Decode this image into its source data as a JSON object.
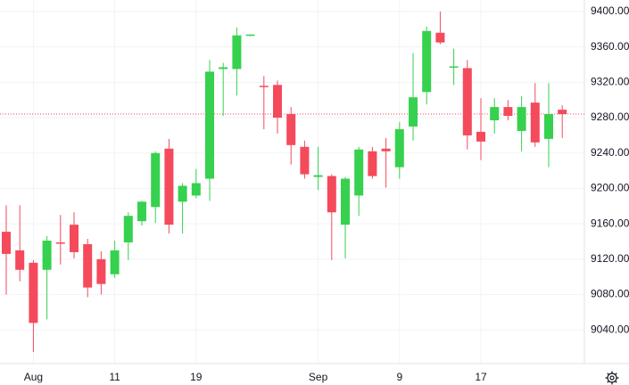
{
  "chart_data": {
    "type": "candlestick",
    "categories": [
      null,
      null,
      "Aug",
      null,
      null,
      null,
      null,
      null,
      "11",
      null,
      null,
      null,
      null,
      null,
      "19",
      null,
      null,
      null,
      null,
      null,
      null,
      null,
      null,
      "Sep",
      null,
      null,
      null,
      null,
      null,
      "9",
      null,
      null,
      null,
      null,
      null,
      "17",
      null,
      null,
      null,
      null,
      null,
      null
    ],
    "open": [
      9151,
      9130,
      9116,
      9108,
      9139,
      9159,
      9137,
      9120,
      9103,
      9139,
      9163,
      9179,
      9245,
      9185,
      9192,
      9211,
      9335,
      9335,
      9373,
      9316,
      9317,
      9284,
      9247,
      9213,
      9214,
      9159,
      9192,
      9242,
      9245,
      9224,
      9270,
      9309,
      9376,
      9337,
      9336,
      9264,
      9277,
      9292,
      9265,
      9297,
      9256,
      9289
    ],
    "high": [
      9181,
      9181,
      9119,
      9146,
      9170,
      9173,
      9143,
      9129,
      9141,
      9173,
      9186,
      9242,
      9256,
      9206,
      9222,
      9345,
      9342,
      9382,
      9374,
      9327,
      9322,
      9292,
      9254,
      9247,
      9216,
      9213,
      9247,
      9247,
      9257,
      9275,
      9353,
      9383,
      9400,
      9358,
      9345,
      9302,
      9302,
      9300,
      9304,
      9319,
      9319,
      9294
    ],
    "low": [
      9080,
      9095,
      9015,
      9052,
      9114,
      9121,
      9077,
      9080,
      9099,
      9119,
      9158,
      9161,
      9149,
      9149,
      9189,
      9186,
      9282,
      9305,
      9372,
      9267,
      9262,
      9227,
      9211,
      9198,
      9119,
      9121,
      9169,
      9211,
      9201,
      9211,
      9254,
      9295,
      9363,
      9317,
      9244,
      9232,
      9262,
      9277,
      9242,
      9247,
      9224,
      9257
    ],
    "close": [
      9126,
      9108,
      9048,
      9141,
      9138,
      9128,
      9088,
      9092,
      9130,
      9169,
      9185,
      9240,
      9159,
      9203,
      9206,
      9332,
      9337,
      9373,
      9374,
      9315,
      9280,
      9249,
      9216,
      9215,
      9173,
      9211,
      9244,
      9214,
      9242,
      9267,
      9303,
      9378,
      9365,
      9338,
      9260,
      9253,
      9292,
      9282,
      9292,
      9252,
      9284,
      9284
    ],
    "up_color": "#36d14e",
    "down_color": "#f44a5c",
    "price_line": 9284,
    "ylim": [
      9002,
      9413
    ],
    "yticks": [
      {
        "value": 9040,
        "label": "9040.00"
      },
      {
        "value": 9080,
        "label": "9080.00"
      },
      {
        "value": 9120,
        "label": "9120.00"
      },
      {
        "value": 9160,
        "label": "9160.00"
      },
      {
        "value": 9200,
        "label": "9200.00"
      },
      {
        "value": 9240,
        "label": "9240.00"
      },
      {
        "value": 9280,
        "label": "9280.00"
      },
      {
        "value": 9320,
        "label": "9320.00"
      },
      {
        "value": 9360,
        "label": "9360.00"
      },
      {
        "value": 9400,
        "label": "9400.00"
      }
    ],
    "grid": true
  }
}
